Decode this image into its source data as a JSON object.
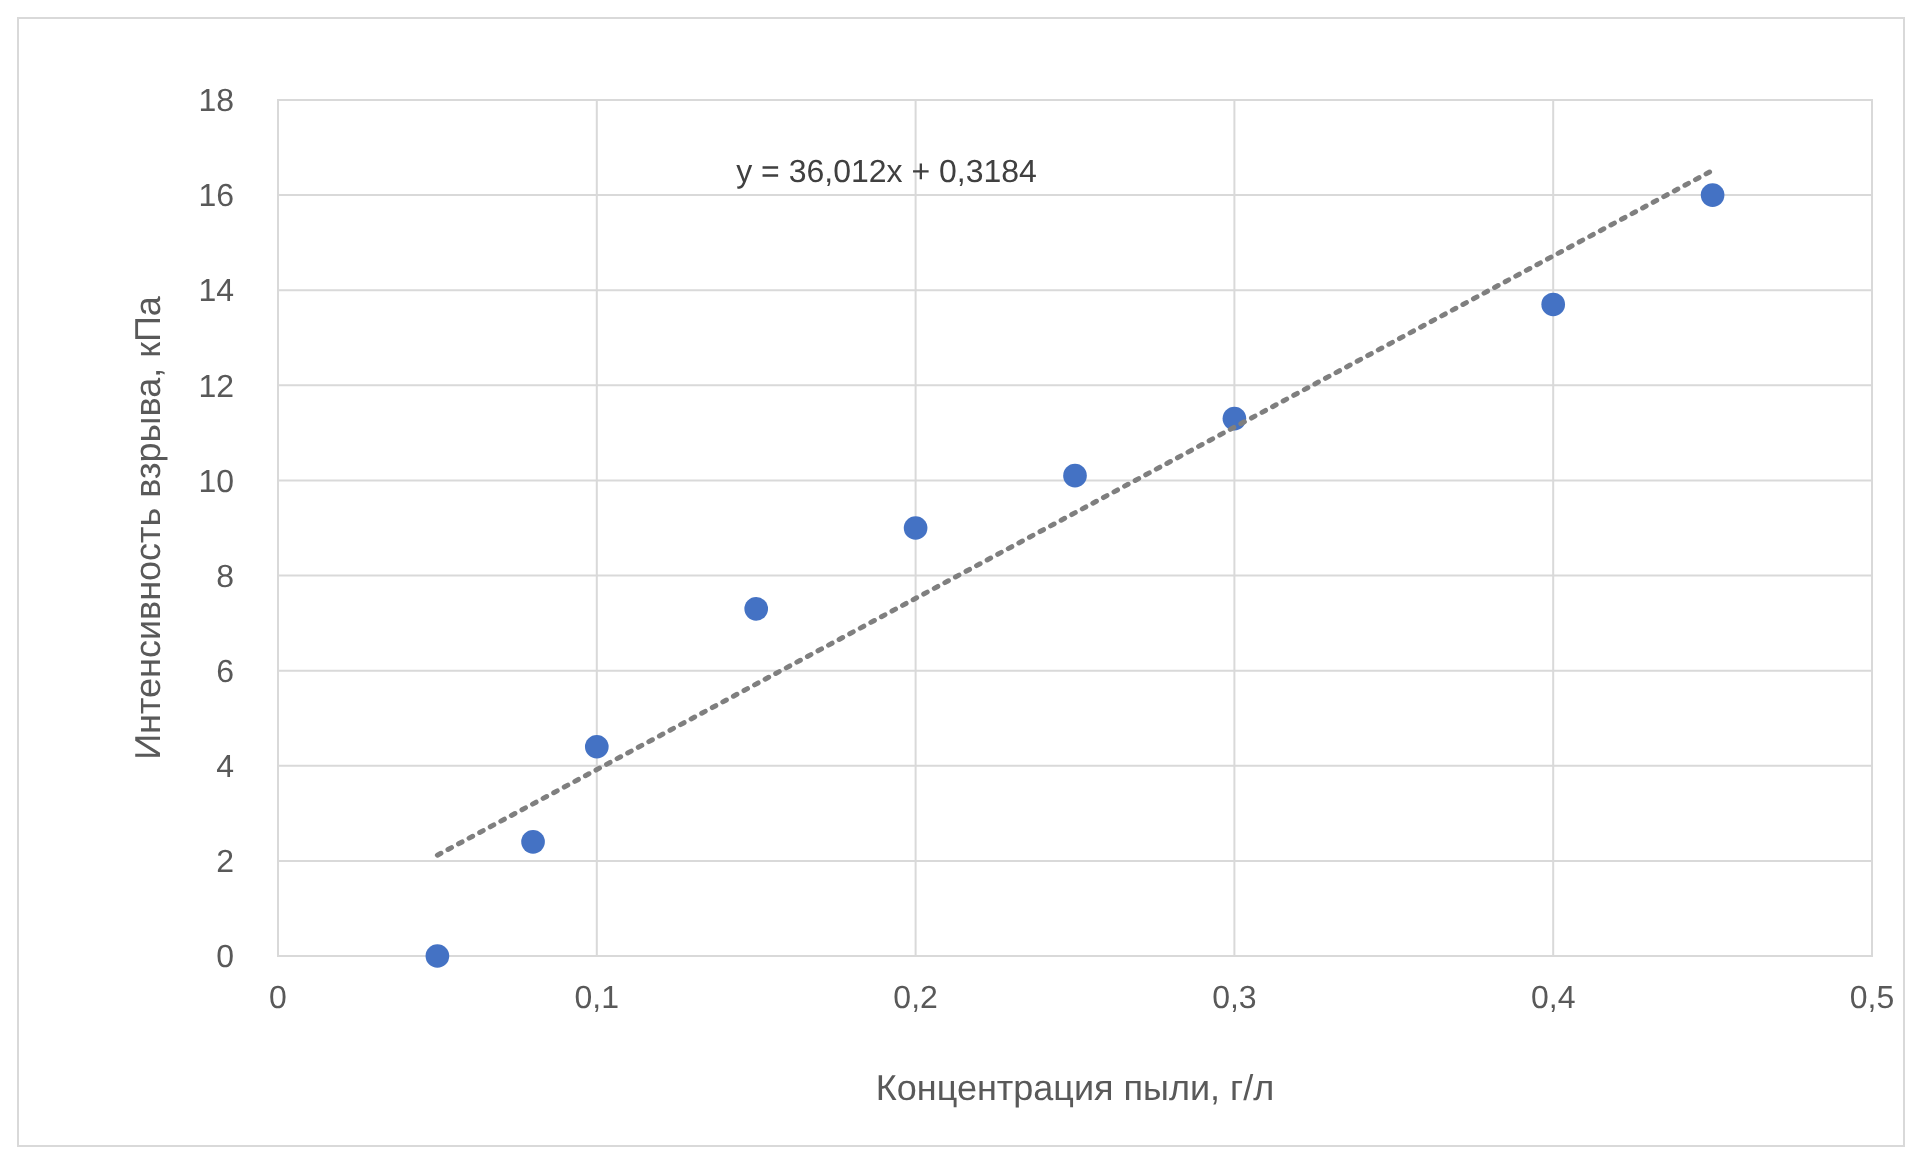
{
  "chart_data": {
    "type": "scatter",
    "xlabel": "Концентрация пыли, г/л",
    "ylabel": "Интенсивность взрыва, кПа",
    "xlim": [
      0,
      0.5
    ],
    "xticks": [
      {
        "value": 0,
        "label": "0"
      },
      {
        "value": 0.1,
        "label": "0,1"
      },
      {
        "value": 0.2,
        "label": "0,2"
      },
      {
        "value": 0.3,
        "label": "0,3"
      },
      {
        "value": 0.4,
        "label": "0,4"
      },
      {
        "value": 0.5,
        "label": "0,5"
      }
    ],
    "ylim": [
      0,
      18
    ],
    "yticks": [
      0,
      2,
      4,
      6,
      8,
      10,
      12,
      14,
      16,
      18
    ],
    "grid": true,
    "marker": "circle",
    "annotations": [
      "y = 36,012x + 0,3184"
    ],
    "series": [
      {
        "color": "#4472c4",
        "x": [
          0.05,
          0.08,
          0.1,
          0.15,
          0.2,
          0.25,
          0.3,
          0.4,
          0.45
        ],
        "values": [
          0,
          2.4,
          4.4,
          7.3,
          9,
          10.1,
          11.3,
          13.7,
          16
        ]
      },
      {
        "type": "line",
        "color": "#7f7f7f",
        "line_style": "dotted",
        "marker": "none",
        "x": [
          0.05,
          0.45
        ],
        "values": [
          2.12,
          16.52
        ]
      }
    ]
  }
}
